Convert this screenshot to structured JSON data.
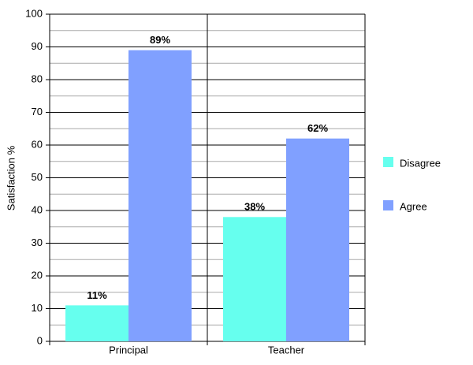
{
  "chart_data": {
    "type": "bar",
    "y_label": "Satisfaction %",
    "categories": [
      "Principal",
      "Teacher"
    ],
    "series": [
      {
        "name": "Disagree",
        "color": "#66ffee",
        "values": [
          11,
          38
        ],
        "value_labels": [
          "11%",
          "38%"
        ]
      },
      {
        "name": "Agree",
        "color": "#80a0ff",
        "values": [
          89,
          62
        ],
        "value_labels": [
          "89%",
          "62%"
        ]
      }
    ],
    "ylim": [
      0,
      100
    ],
    "yticks": [
      0,
      10,
      20,
      30,
      40,
      50,
      60,
      70,
      80,
      90,
      100
    ],
    "minor_yticks": [
      5,
      15,
      25,
      35,
      45,
      55,
      65,
      75,
      85,
      95
    ],
    "grid": true,
    "legend": "right"
  }
}
